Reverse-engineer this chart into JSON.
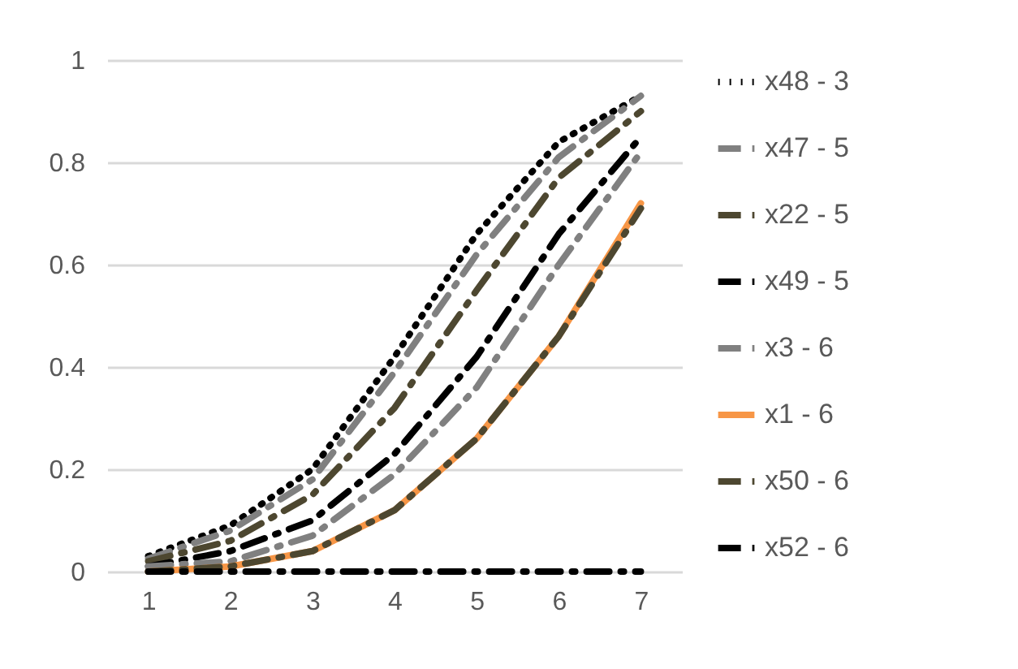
{
  "chart_data": {
    "type": "line",
    "categories": [
      "1",
      "2",
      "3",
      "4",
      "5",
      "6",
      "7"
    ],
    "ylim": [
      0,
      1
    ],
    "yticks": [
      0,
      0.2,
      0.4,
      0.6,
      0.8,
      1
    ],
    "grid": "y",
    "legend": "right",
    "series": [
      {
        "name": "x48  -  3",
        "color": "#000000",
        "line_style": "dotted",
        "values": [
          0.03,
          0.09,
          0.2,
          0.42,
          0.66,
          0.84,
          0.93
        ]
      },
      {
        "name": "x47  -  5",
        "color": "#808080",
        "line_style": "dashed",
        "values": [
          0.025,
          0.08,
          0.18,
          0.39,
          0.62,
          0.81,
          0.93
        ]
      },
      {
        "name": "x22  -  5",
        "color": "#4d4730",
        "line_style": "dashed",
        "values": [
          0.02,
          0.06,
          0.15,
          0.32,
          0.55,
          0.77,
          0.9
        ]
      },
      {
        "name": "x49  -  5",
        "color": "#000000",
        "line_style": "dashed",
        "values": [
          0.01,
          0.04,
          0.1,
          0.23,
          0.42,
          0.66,
          0.85
        ]
      },
      {
        "name": "x3  -  6",
        "color": "#808080",
        "line_style": "dashed",
        "values": [
          0.01,
          0.02,
          0.07,
          0.19,
          0.36,
          0.6,
          0.82
        ]
      },
      {
        "name": "x1  -  6",
        "color": "#f79646",
        "line_style": "solid",
        "values": [
          0,
          0.01,
          0.04,
          0.12,
          0.26,
          0.46,
          0.72
        ]
      },
      {
        "name": "x50  -  6",
        "color": "#4d4730",
        "line_style": "dashed",
        "values": [
          0,
          0.01,
          0.04,
          0.12,
          0.26,
          0.46,
          0.71
        ]
      },
      {
        "name": "x52  -  6",
        "color": "#000000",
        "line_style": "dashed",
        "values": [
          0,
          0,
          0,
          0,
          0,
          0,
          0
        ]
      }
    ]
  }
}
